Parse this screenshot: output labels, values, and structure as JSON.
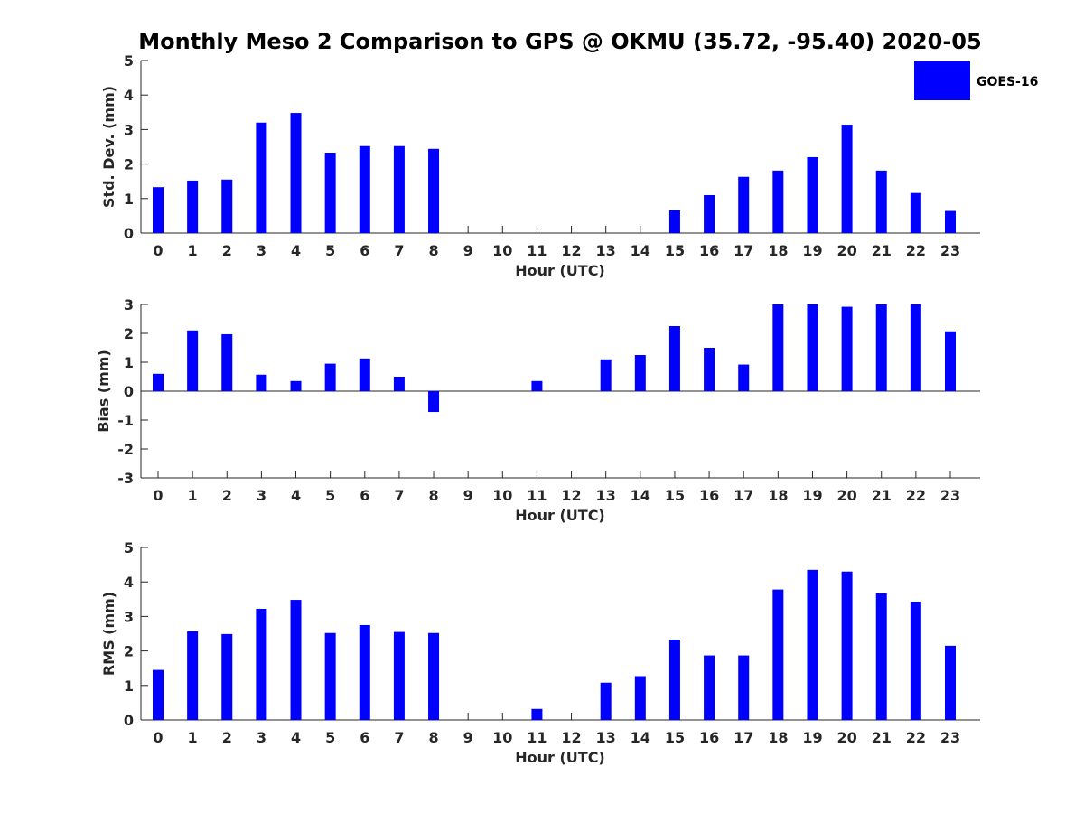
{
  "figure": {
    "title": "Monthly Meso 2 Comparison to GPS @ OKMU (35.72, -95.40) 2020-05",
    "legend": {
      "label": "GOES-16",
      "color": "#0000ff",
      "position": "top-right"
    }
  },
  "chart_data": [
    {
      "type": "bar",
      "ylabel": "Std. Dev. (mm)",
      "xlabel": "Hour (UTC)",
      "ylim": [
        0,
        5
      ],
      "yticks": [
        0,
        1,
        2,
        3,
        4,
        5
      ],
      "categories": [
        "0",
        "1",
        "2",
        "3",
        "4",
        "5",
        "6",
        "7",
        "8",
        "9",
        "10",
        "11",
        "12",
        "13",
        "14",
        "15",
        "16",
        "17",
        "18",
        "19",
        "20",
        "21",
        "22",
        "23"
      ],
      "series": [
        {
          "name": "GOES-16",
          "color": "#0000ff",
          "values": [
            1.33,
            1.52,
            1.55,
            3.2,
            3.48,
            2.33,
            2.52,
            2.52,
            2.44,
            null,
            null,
            null,
            null,
            null,
            null,
            0.66,
            1.1,
            1.63,
            1.81,
            2.2,
            3.14,
            1.81,
            1.16,
            0.64
          ]
        }
      ]
    },
    {
      "type": "bar",
      "ylabel": "Bias (mm)",
      "xlabel": "Hour (UTC)",
      "ylim": [
        -3,
        3
      ],
      "yticks": [
        -3,
        -2,
        -1,
        0,
        1,
        2,
        3
      ],
      "categories": [
        "0",
        "1",
        "2",
        "3",
        "4",
        "5",
        "6",
        "7",
        "8",
        "9",
        "10",
        "11",
        "12",
        "13",
        "14",
        "15",
        "16",
        "17",
        "18",
        "19",
        "20",
        "21",
        "22",
        "23"
      ],
      "series": [
        {
          "name": "GOES-16",
          "color": "#0000ff",
          "values": [
            0.6,
            2.1,
            1.97,
            0.57,
            0.35,
            0.95,
            1.13,
            0.5,
            -0.72,
            null,
            null,
            0.35,
            null,
            1.1,
            1.25,
            2.25,
            1.5,
            0.92,
            3.0,
            3.0,
            2.92,
            3.0,
            3.0,
            2.07
          ]
        }
      ]
    },
    {
      "type": "bar",
      "ylabel": "RMS (mm)",
      "xlabel": "Hour (UTC)",
      "ylim": [
        0,
        5
      ],
      "yticks": [
        0,
        1,
        2,
        3,
        4,
        5
      ],
      "categories": [
        "0",
        "1",
        "2",
        "3",
        "4",
        "5",
        "6",
        "7",
        "8",
        "9",
        "10",
        "11",
        "12",
        "13",
        "14",
        "15",
        "16",
        "17",
        "18",
        "19",
        "20",
        "21",
        "22",
        "23"
      ],
      "series": [
        {
          "name": "GOES-16",
          "color": "#0000ff",
          "values": [
            1.45,
            2.57,
            2.49,
            3.22,
            3.48,
            2.52,
            2.75,
            2.55,
            2.52,
            null,
            null,
            0.32,
            null,
            1.08,
            1.27,
            2.33,
            1.87,
            1.87,
            3.78,
            4.35,
            4.3,
            3.67,
            3.43,
            2.15
          ]
        }
      ]
    }
  ]
}
